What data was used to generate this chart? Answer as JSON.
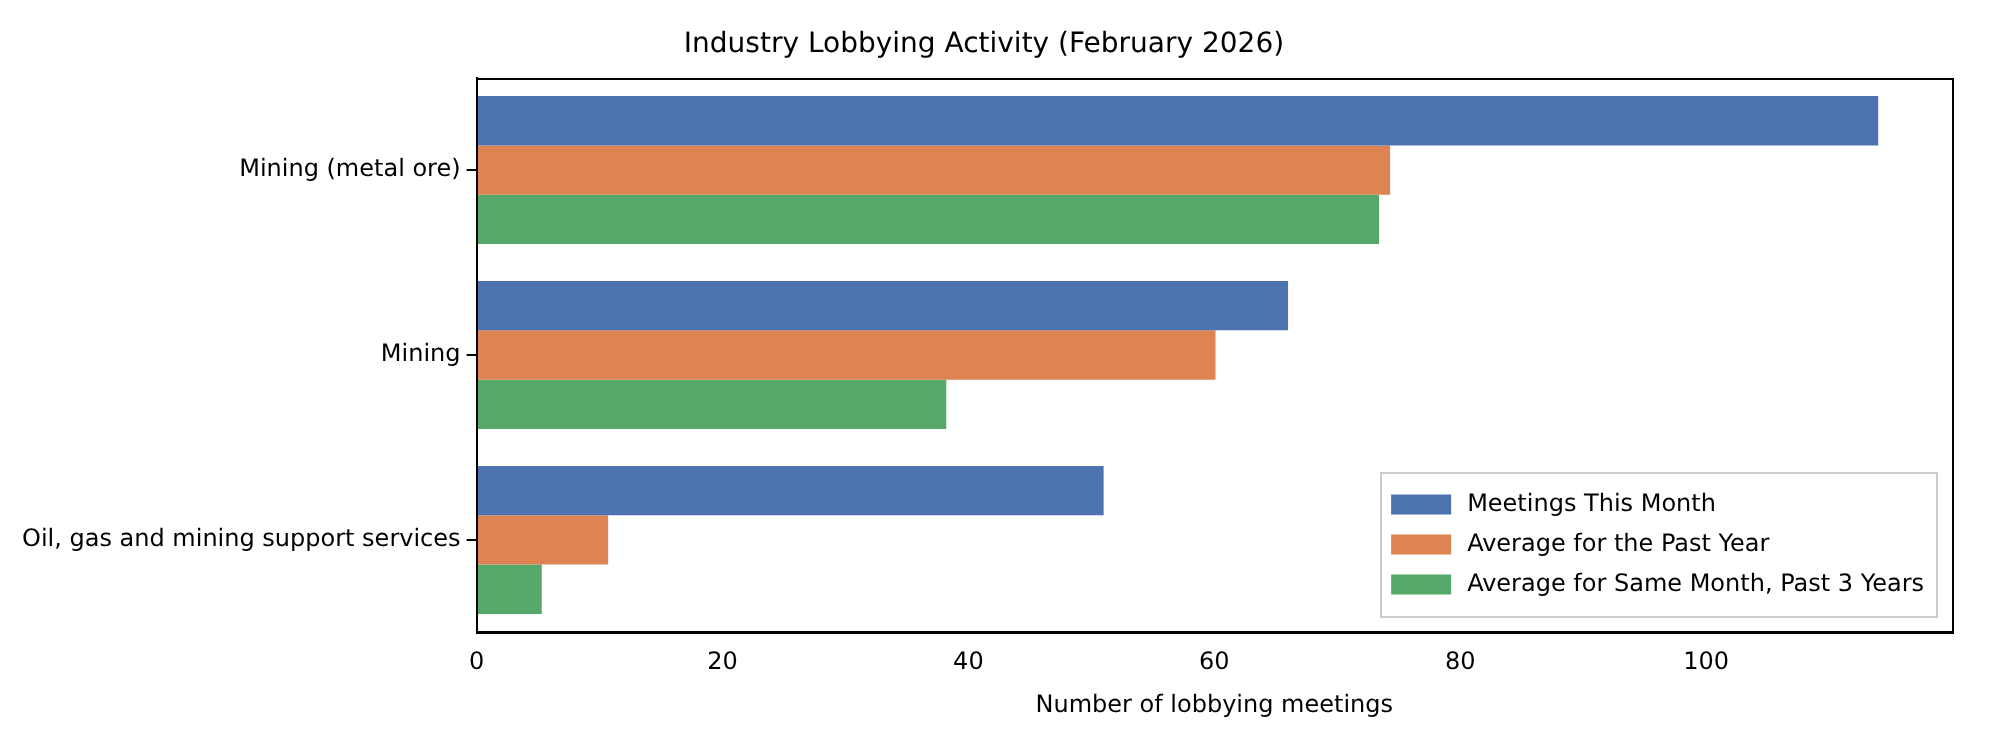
{
  "chart_data": {
    "type": "bar",
    "orientation": "horizontal",
    "title": "Industry Lobbying Activity (February 2026)",
    "xlabel": "Number of lobbying meetings",
    "categories": [
      "Mining (metal ore)",
      "Mining",
      "Oil, gas and mining support services"
    ],
    "series": [
      {
        "name": "Meetings This Month",
        "color": "#4c72b0",
        "values": [
          114,
          66,
          51
        ]
      },
      {
        "name": "Average for the Past Year",
        "color": "#dd8452",
        "values": [
          74.3,
          60.1,
          10.7
        ]
      },
      {
        "name": "Average for Same Month, Past 3 Years",
        "color": "#55a868",
        "values": [
          73.4,
          38.2,
          5.3
        ]
      }
    ],
    "xlim": [
      0,
      120
    ],
    "xticks": [
      0,
      20,
      40,
      60,
      80,
      100
    ],
    "grid": false,
    "legend": "bottom right"
  }
}
